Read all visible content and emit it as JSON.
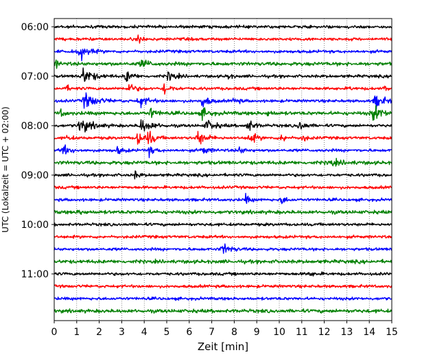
{
  "chart_data": {
    "type": "line",
    "title": "",
    "xlabel": "Zeit  [min]",
    "ylabel": "UTC (Lokalzeit = UTC + 02:00)",
    "xlim": [
      0,
      15
    ],
    "x_ticks": [
      "0",
      "1",
      "2",
      "3",
      "4",
      "5",
      "6",
      "7",
      "8",
      "9",
      "10",
      "11",
      "12",
      "13",
      "14",
      "15"
    ],
    "y_ticks": [
      "06:00",
      "07:00",
      "08:00",
      "09:00",
      "10:00",
      "11:00"
    ],
    "grid": "vertical dotted at each minute",
    "trace_interval_minutes": 15,
    "trace_colors": [
      "#000000",
      "#ff0000",
      "#0000ff",
      "#008000"
    ],
    "traces": [
      "06:00",
      "06:15",
      "06:30",
      "06:45",
      "07:00",
      "07:15",
      "07:30",
      "07:45",
      "08:00",
      "08:15",
      "08:30",
      "08:45",
      "09:00",
      "09:15",
      "09:30",
      "09:45",
      "10:00",
      "10:15",
      "10:30",
      "10:45",
      "11:00",
      "11:15",
      "11:30",
      "11:45"
    ]
  }
}
